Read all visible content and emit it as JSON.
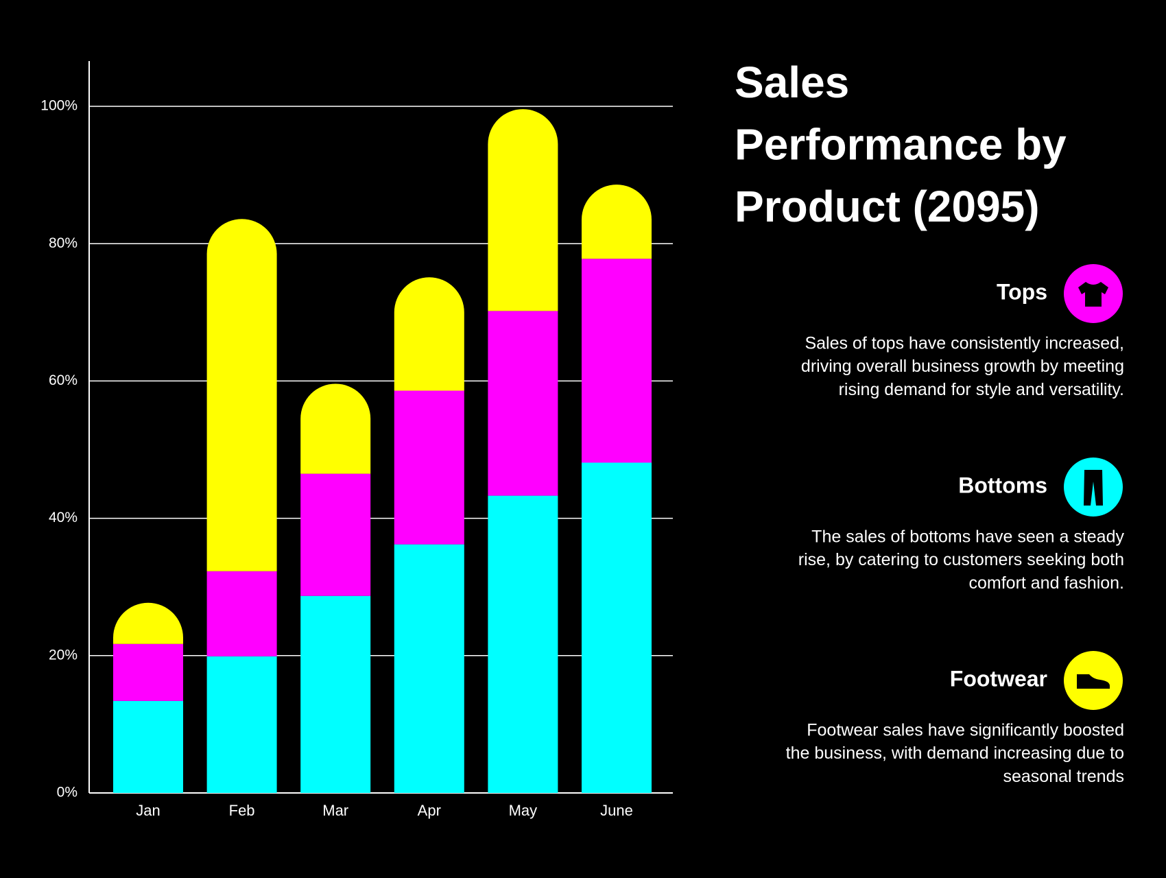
{
  "chart_data": {
    "type": "stacked_bar",
    "title": [
      "Sales",
      "Performance by",
      "Product (2095)"
    ],
    "categories": [
      "Jan",
      "Feb",
      "Mar",
      "Apr",
      "May",
      "June"
    ],
    "series": [
      {
        "name": "Bottoms",
        "color": "#00ffff",
        "values": [
          13.4,
          19.9,
          28.7,
          36.2,
          43.3,
          48.1
        ],
        "description": [
          "The sales of bottoms have seen a steady",
          "rise, by catering to customers seeking both",
          "comfort and fashion."
        ]
      },
      {
        "name": "Tops",
        "color": "#ff00ff",
        "values": [
          8.3,
          12.4,
          17.8,
          22.4,
          26.9,
          29.7
        ],
        "description": [
          "Sales of tops have consistently increased,",
          "driving overall business growth by meeting",
          "rising demand for style and versatility."
        ]
      },
      {
        "name": "Footwear",
        "color": "#ffff00",
        "values": [
          6.0,
          51.3,
          13.1,
          16.5,
          29.4,
          10.8
        ],
        "description": [
          "Footwear sales have significantly boosted",
          "the business, with demand increasing due to",
          "seasonal trends"
        ]
      }
    ],
    "legend_order": [
      1,
      0,
      2
    ],
    "ylim": [
      0,
      106.6
    ],
    "yticks": [
      {
        "value": 0,
        "label": "0%"
      },
      {
        "value": 20,
        "label": "20%"
      },
      {
        "value": 40,
        "label": "40%"
      },
      {
        "value": 60,
        "label": "60%"
      },
      {
        "value": 80,
        "label": "80%"
      },
      {
        "value": 100,
        "label": "100%"
      }
    ],
    "grid": true
  }
}
